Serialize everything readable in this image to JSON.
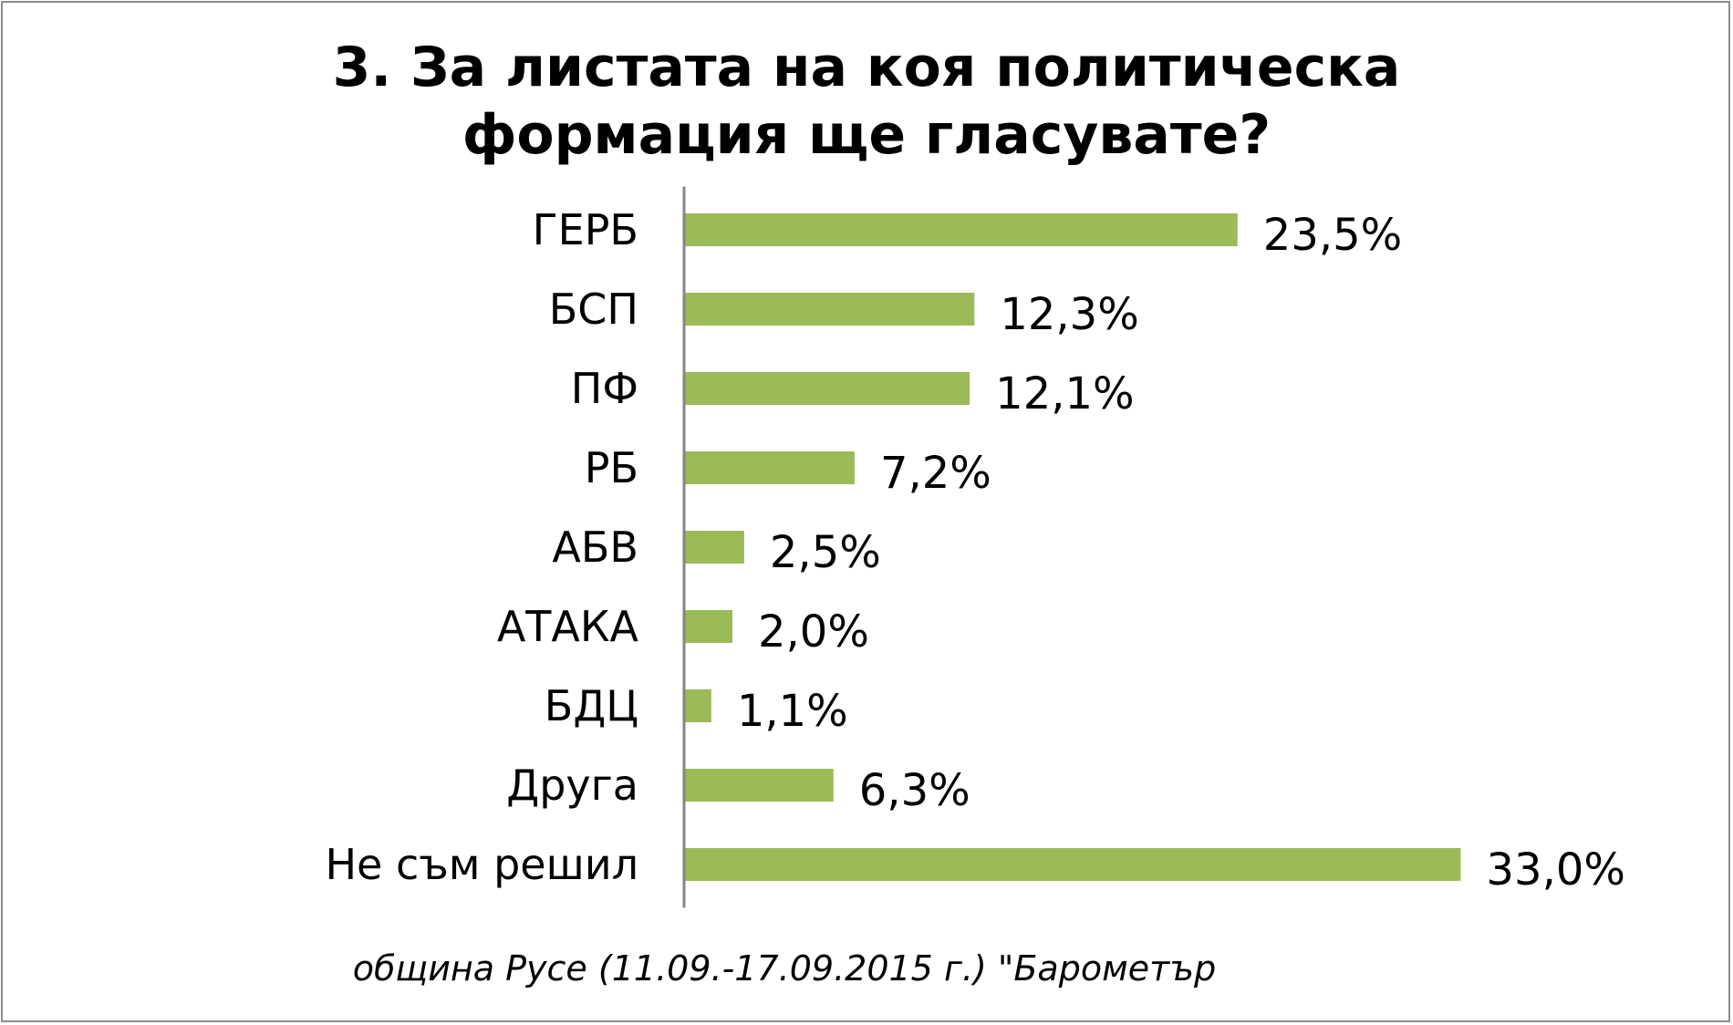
{
  "chart_data": {
    "type": "bar",
    "orientation": "horizontal",
    "title_lines": [
      "3. За листата на коя политическа",
      "формация ще гласувате?"
    ],
    "categories": [
      "ГЕРБ",
      "БСП",
      "ПФ",
      "РБ",
      "АБВ",
      "АТАКА",
      "БДЦ",
      "Друга",
      "Не съм решил"
    ],
    "values": [
      23.5,
      12.3,
      12.1,
      7.2,
      2.5,
      2.0,
      1.1,
      6.3,
      33.0
    ],
    "value_labels": [
      "23,5%",
      "12,3%",
      "12,1%",
      "7,2%",
      "2,5%",
      "2,0%",
      "1,1%",
      "6,3%",
      "33,0%"
    ],
    "xlim": [
      0,
      33.0
    ],
    "grid": false,
    "legend": "none",
    "bar_color": "#9bbb59",
    "axis_color": "#868686"
  },
  "footnote": "община Русе (11.09.-17.09.2015 г.) \"Барометър"
}
